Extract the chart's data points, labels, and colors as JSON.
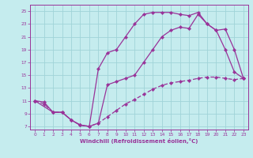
{
  "xlabel": "Windchill (Refroidissement éolien,°C)",
  "xlim": [
    -0.5,
    23.5
  ],
  "ylim": [
    6.5,
    26
  ],
  "xticks": [
    0,
    1,
    2,
    3,
    4,
    5,
    6,
    7,
    8,
    9,
    10,
    11,
    12,
    13,
    14,
    15,
    16,
    17,
    18,
    19,
    20,
    21,
    22,
    23
  ],
  "yticks": [
    7,
    9,
    11,
    13,
    15,
    17,
    19,
    21,
    23,
    25
  ],
  "bg_color": "#c5ecee",
  "grid_color": "#a0d4d8",
  "line_color": "#993399",
  "line1_x": [
    0,
    1,
    2,
    3,
    4,
    5,
    6,
    7,
    8,
    9,
    10,
    11,
    12,
    13,
    14,
    15,
    16,
    17,
    18,
    19,
    20,
    21,
    22,
    23
  ],
  "line1_y": [
    11,
    10.8,
    9.2,
    9.2,
    8.0,
    7.2,
    7.0,
    16.0,
    18.5,
    19.0,
    21.0,
    23.0,
    24.5,
    24.8,
    24.8,
    24.8,
    24.5,
    24.3,
    24.8,
    23.0,
    22.0,
    19.0,
    15.5,
    14.5
  ],
  "line2_x": [
    0,
    1,
    2,
    3,
    4,
    5,
    6,
    7,
    8,
    9,
    10,
    11,
    12,
    13,
    14,
    15,
    16,
    17,
    18,
    19,
    20,
    21,
    22,
    23
  ],
  "line2_y": [
    11,
    10.5,
    9.2,
    9.2,
    8.0,
    7.2,
    7.0,
    7.5,
    8.5,
    9.5,
    10.5,
    11.2,
    12.0,
    12.8,
    13.4,
    13.8,
    14.0,
    14.2,
    14.5,
    14.7,
    14.7,
    14.5,
    14.3,
    14.5
  ],
  "line3_x": [
    0,
    2,
    3,
    4,
    5,
    6,
    7,
    8,
    9,
    10,
    11,
    12,
    13,
    14,
    15,
    16,
    17,
    18,
    19,
    20,
    21,
    22,
    23
  ],
  "line3_y": [
    11,
    9.2,
    9.2,
    8.0,
    7.2,
    7.0,
    7.5,
    13.5,
    14.0,
    14.5,
    15.0,
    17.0,
    19.0,
    21.0,
    22.0,
    22.5,
    22.3,
    24.5,
    23.0,
    22.0,
    22.2,
    19.0,
    14.5
  ]
}
